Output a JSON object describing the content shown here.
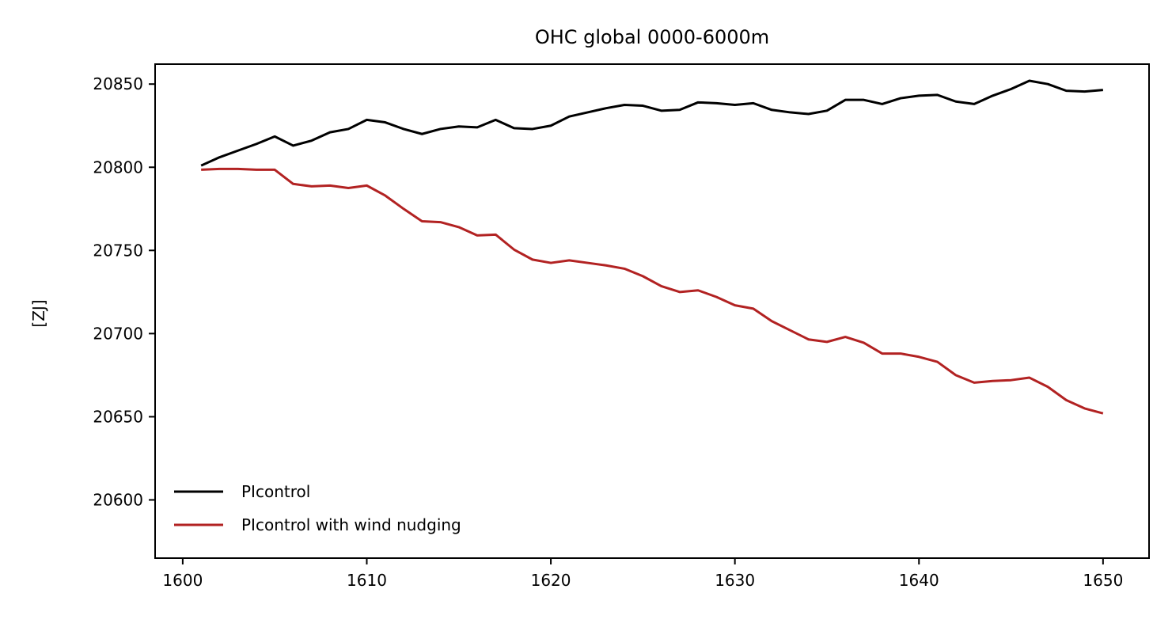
{
  "chart_data": {
    "type": "line",
    "title": "OHC global 0000-6000m",
    "xlabel": "",
    "ylabel": "[ZJ]",
    "xlim": [
      1598.5,
      1652.5
    ],
    "ylim": [
      20565,
      20862
    ],
    "xticks": [
      1600,
      1610,
      1620,
      1630,
      1640,
      1650
    ],
    "yticks": [
      20600,
      20650,
      20700,
      20750,
      20800,
      20850
    ],
    "grid": false,
    "legend_position": "lower-left",
    "x": [
      1601,
      1602,
      1603,
      1604,
      1605,
      1606,
      1607,
      1608,
      1609,
      1610,
      1611,
      1612,
      1613,
      1614,
      1615,
      1616,
      1617,
      1618,
      1619,
      1620,
      1621,
      1622,
      1623,
      1624,
      1625,
      1626,
      1627,
      1628,
      1629,
      1630,
      1631,
      1632,
      1633,
      1634,
      1635,
      1636,
      1637,
      1638,
      1639,
      1640,
      1641,
      1642,
      1643,
      1644,
      1645,
      1646,
      1647,
      1648,
      1649,
      1650
    ],
    "series": [
      {
        "name": "PIcontrol",
        "color": "#000000",
        "values": [
          20801,
          20806,
          20810,
          20814,
          20818.5,
          20813,
          20816,
          20821,
          20823,
          20828.5,
          20827,
          20823,
          20820,
          20823,
          20824.5,
          20824,
          20828.5,
          20823.5,
          20823,
          20825,
          20830.5,
          20833,
          20835.5,
          20837.5,
          20837,
          20834,
          20834.5,
          20839,
          20838.5,
          20837.5,
          20838.5,
          20834.5,
          20833,
          20832,
          20834,
          20840.5,
          20840.5,
          20838,
          20841.5,
          20843,
          20843.5,
          20839.5,
          20838,
          20843,
          20847,
          20852,
          20850,
          20846,
          20845.5,
          20846.5
        ]
      },
      {
        "name": "PIcontrol with wind nudging",
        "color": "#b22222",
        "values": [
          20798.5,
          20799,
          20799,
          20798.5,
          20798.5,
          20790,
          20788.5,
          20789,
          20787.5,
          20789,
          20783,
          20775,
          20767.5,
          20767,
          20764,
          20759,
          20759.5,
          20750.5,
          20744.5,
          20742.5,
          20744,
          20742.5,
          20741,
          20739,
          20734.5,
          20728.5,
          20725,
          20726,
          20722,
          20717,
          20715,
          20707.5,
          20702,
          20696.5,
          20695,
          20698,
          20694.5,
          20688,
          20688,
          20686,
          20683,
          20675,
          20670.5,
          20671.5,
          20672,
          20673.5,
          20668,
          20660,
          20655,
          20652
        ]
      }
    ]
  }
}
